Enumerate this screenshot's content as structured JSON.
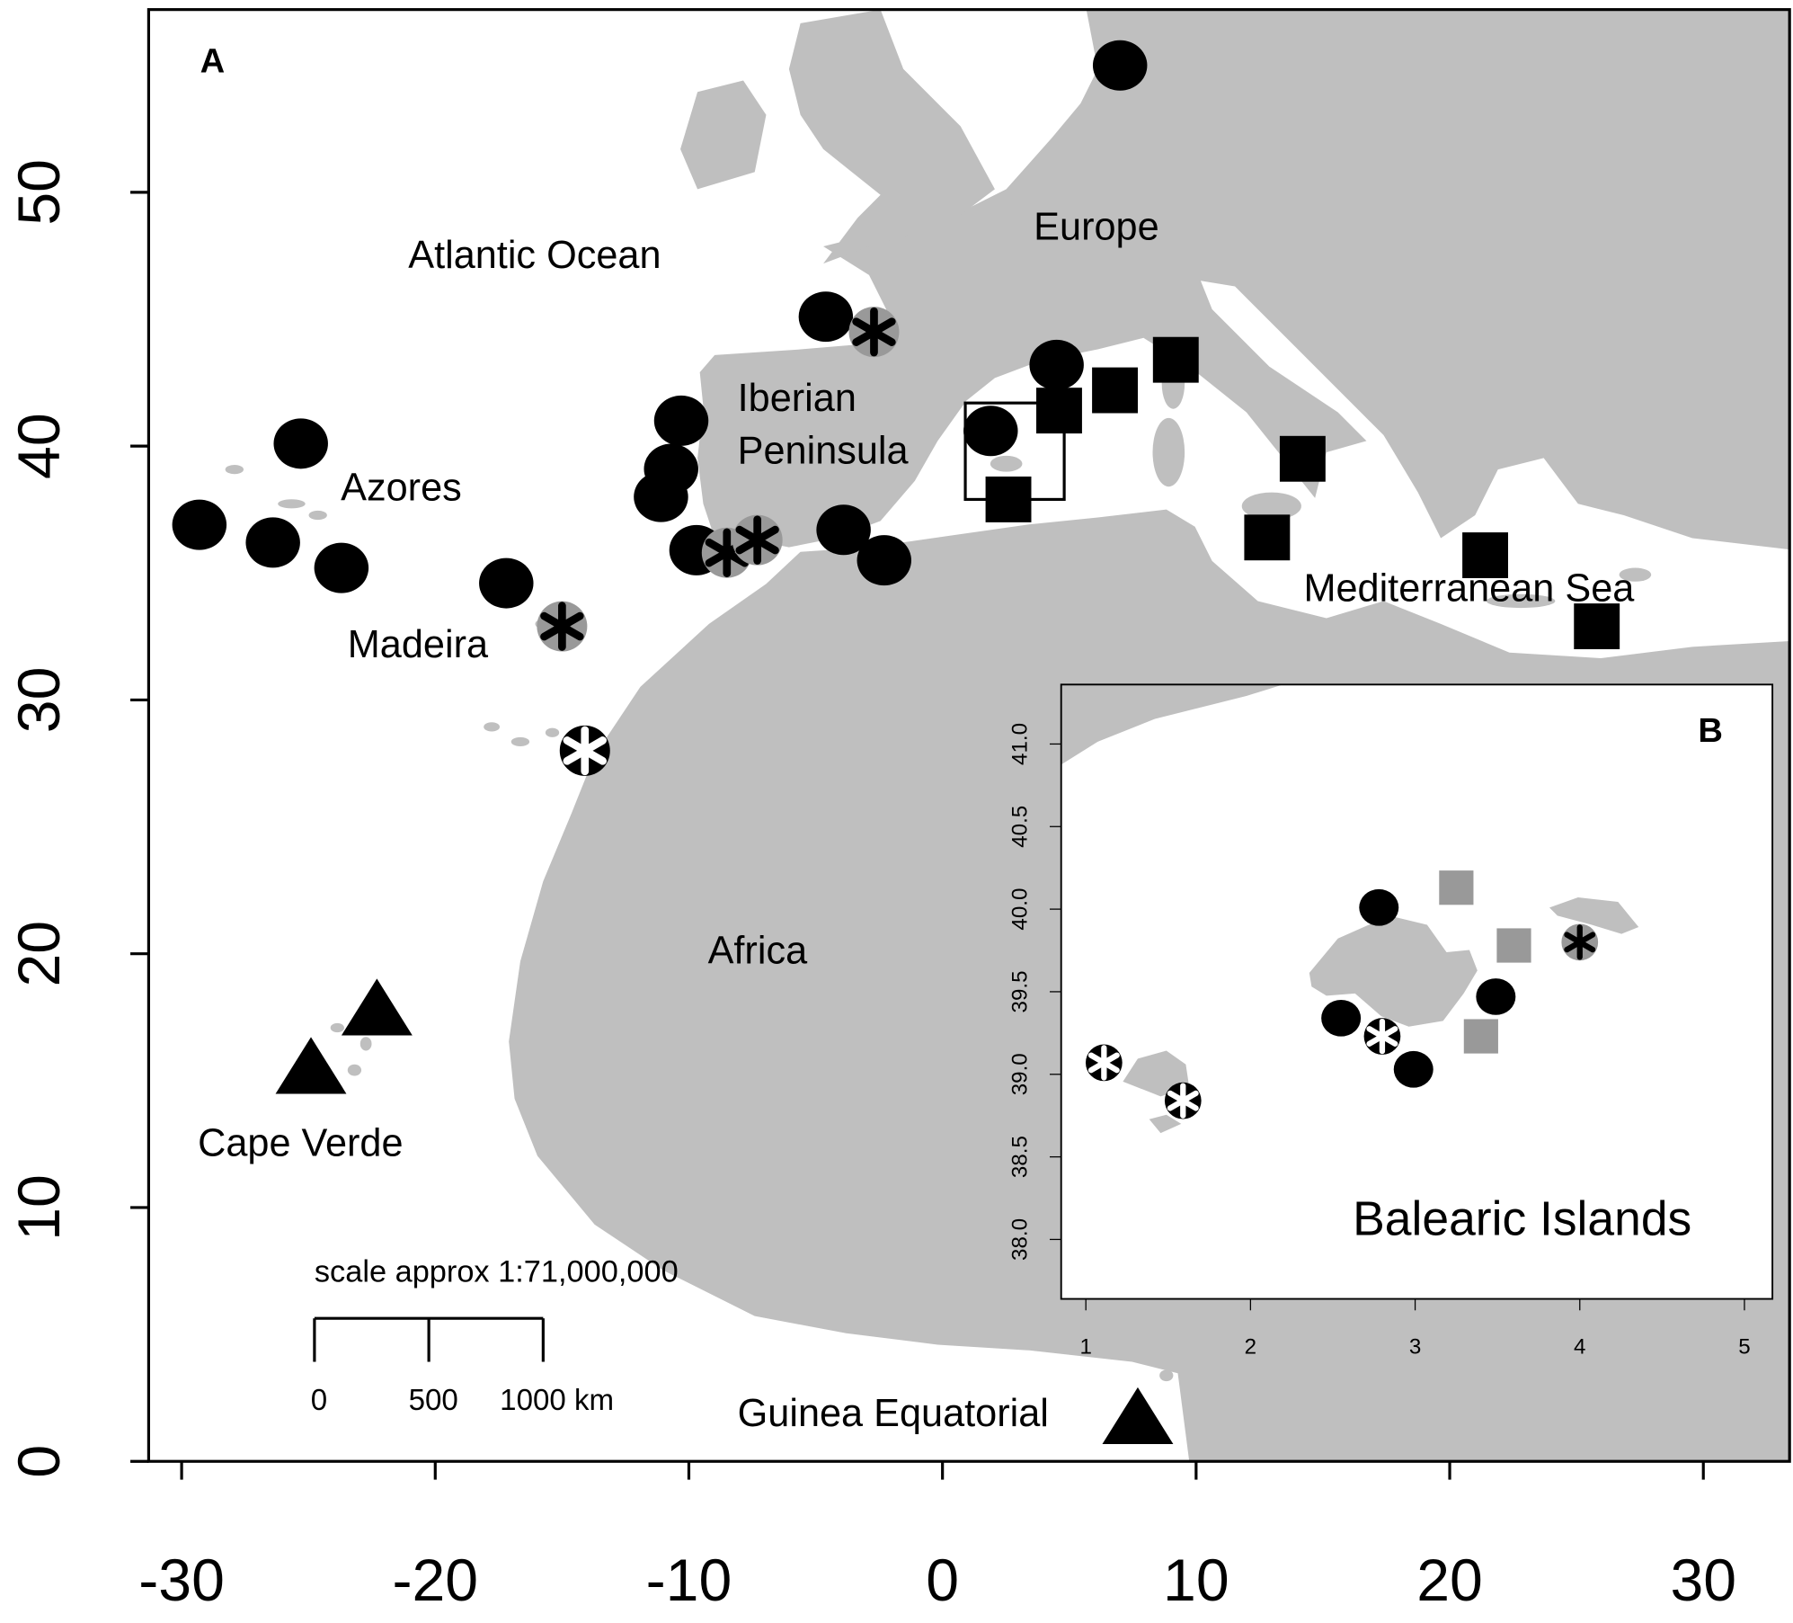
{
  "panels": [
    {
      "label": "A",
      "xlim": [
        -31.3,
        33.4
      ],
      "ylim": [
        0,
        57.2
      ],
      "xticks": [
        -30,
        -20,
        -10,
        0,
        10,
        20,
        30
      ],
      "yticks": [
        0,
        10,
        20,
        30,
        40,
        50
      ],
      "points": [
        {
          "x": 7.0,
          "y": 55.0,
          "marker": "circle"
        },
        {
          "x": -4.6,
          "y": 45.1,
          "marker": "circle"
        },
        {
          "x": 4.5,
          "y": 43.2,
          "marker": "circle"
        },
        {
          "x": -10.3,
          "y": 41.0,
          "marker": "circle"
        },
        {
          "x": -10.7,
          "y": 39.1,
          "marker": "circle"
        },
        {
          "x": -11.1,
          "y": 38.0,
          "marker": "circle"
        },
        {
          "x": -25.3,
          "y": 40.1,
          "marker": "circle"
        },
        {
          "x": -29.3,
          "y": 36.9,
          "marker": "circle"
        },
        {
          "x": -26.4,
          "y": 36.2,
          "marker": "circle"
        },
        {
          "x": -23.7,
          "y": 35.2,
          "marker": "circle"
        },
        {
          "x": -17.2,
          "y": 34.6,
          "marker": "circle"
        },
        {
          "x": -9.7,
          "y": 35.9,
          "marker": "circle"
        },
        {
          "x": -3.9,
          "y": 36.7,
          "marker": "circle"
        },
        {
          "x": -2.3,
          "y": 35.5,
          "marker": "circle"
        },
        {
          "x": 1.9,
          "y": 40.6,
          "marker": "circle"
        },
        {
          "x": -2.7,
          "y": 44.5,
          "marker": "gray-asterisk"
        },
        {
          "x": -15.0,
          "y": 32.9,
          "marker": "gray-asterisk"
        },
        {
          "x": -8.5,
          "y": 35.8,
          "marker": "gray-asterisk"
        },
        {
          "x": -7.3,
          "y": 36.3,
          "marker": "gray-asterisk"
        },
        {
          "x": -14.1,
          "y": 28.0,
          "marker": "white-asterisk"
        },
        {
          "x": 4.6,
          "y": 41.4,
          "marker": "square"
        },
        {
          "x": 6.8,
          "y": 42.2,
          "marker": "square"
        },
        {
          "x": 9.2,
          "y": 43.4,
          "marker": "square"
        },
        {
          "x": 2.6,
          "y": 37.9,
          "marker": "square"
        },
        {
          "x": 14.2,
          "y": 39.5,
          "marker": "square"
        },
        {
          "x": 12.8,
          "y": 36.4,
          "marker": "square"
        },
        {
          "x": 21.4,
          "y": 35.7,
          "marker": "square"
        },
        {
          "x": 25.8,
          "y": 32.9,
          "marker": "square"
        },
        {
          "x": -22.3,
          "y": 17.9,
          "marker": "triangle"
        },
        {
          "x": -24.9,
          "y": 15.6,
          "marker": "triangle"
        },
        {
          "x": 7.7,
          "y": 1.8,
          "marker": "triangle"
        }
      ],
      "box": {
        "x": [
          0.9,
          4.8
        ],
        "y": [
          37.9,
          41.7
        ]
      },
      "places": [
        "Atlantic Ocean",
        "Europe",
        "Iberian Peninsula",
        "Azores",
        "Madeira",
        "Mediterranean Sea",
        "Africa",
        "Cape Verde",
        "Guinea Equatorial"
      ],
      "scale_bar": {
        "title": "scale approx 1:71,000,000",
        "ticks": [
          0,
          500,
          {
            "value": 1000,
            "label": "1000 km"
          }
        ]
      }
    },
    {
      "label": "B",
      "xlim": [
        0.85,
        5.17
      ],
      "ylim": [
        37.64,
        41.36
      ],
      "xticks": [
        1,
        2,
        3,
        4,
        5
      ],
      "yticks": [
        {
          "value": 38,
          "label": "38.0"
        },
        38.5,
        {
          "value": 39,
          "label": "39.0"
        },
        39.5,
        {
          "value": 40,
          "label": "40.0"
        },
        40.5,
        {
          "value": 41,
          "label": "41.0"
        }
      ],
      "points": [
        {
          "x": 2.78,
          "y": 40.01,
          "marker": "circle"
        },
        {
          "x": 2.55,
          "y": 39.34,
          "marker": "circle"
        },
        {
          "x": 3.49,
          "y": 39.47,
          "marker": "circle"
        },
        {
          "x": 2.99,
          "y": 39.03,
          "marker": "circle"
        },
        {
          "x": 2.8,
          "y": 39.23,
          "marker": "white-asterisk"
        },
        {
          "x": 1.11,
          "y": 39.07,
          "marker": "white-asterisk"
        },
        {
          "x": 1.59,
          "y": 38.84,
          "marker": "white-asterisk"
        },
        {
          "x": 4.0,
          "y": 39.8,
          "marker": "gray-asterisk"
        },
        {
          "x": 3.25,
          "y": 40.13,
          "marker": "gray-square"
        },
        {
          "x": 3.6,
          "y": 39.78,
          "marker": "gray-square"
        },
        {
          "x": 3.4,
          "y": 39.23,
          "marker": "gray-square"
        }
      ],
      "places": [
        "Balearic Islands"
      ]
    }
  ]
}
